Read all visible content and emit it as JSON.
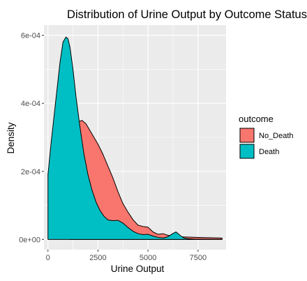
{
  "chart_data": {
    "type": "area",
    "title": "Distribution of Urine Output by Outcome Status",
    "xlabel": "Urine Output",
    "ylabel": "Density",
    "xlim": [
      -200,
      8900
    ],
    "ylim": [
      -3e-05,
      0.00063
    ],
    "x_ticks": [
      0,
      2500,
      5000,
      7500
    ],
    "x_tick_labels": [
      "0",
      "2500",
      "5000",
      "7500"
    ],
    "y_ticks": [
      0,
      0.0002,
      0.0004,
      0.0006
    ],
    "y_tick_labels": [
      "0e+00",
      "2e-04",
      "4e-04",
      "6e-04"
    ],
    "grid": true,
    "legend": {
      "title": "outcome",
      "position": "right",
      "entries": [
        {
          "label": "No_Death",
          "color": "#F8766D"
        },
        {
          "label": "Death",
          "color": "#00BFC4"
        }
      ]
    },
    "series": [
      {
        "name": "No_Death",
        "color": "#F8766D",
        "x": [
          1100,
          1300,
          1500,
          1700,
          1900,
          2100,
          2300,
          2500,
          2750,
          3000,
          3250,
          3500,
          3750,
          4000,
          4250,
          4500,
          4750,
          5000,
          5250,
          5500,
          5750,
          6000,
          6500,
          7000,
          7500,
          8000,
          8700
        ],
        "y": [
          0.00025,
          0.00033,
          0.000345,
          0.00035,
          0.00034,
          0.00032,
          0.0003,
          0.00028,
          0.00025,
          0.000215,
          0.00018,
          0.00014,
          0.000105,
          8e-05,
          5.8e-05,
          4.2e-05,
          3.8e-05,
          3.6e-05,
          2.2e-05,
          1.5e-05,
          1.7e-05,
          1.2e-05,
          8e-06,
          7e-06,
          6e-06,
          5e-06,
          4e-06
        ]
      },
      {
        "name": "Death",
        "color": "#00BFC4",
        "x": [
          0,
          150,
          300,
          450,
          600,
          750,
          900,
          1000,
          1100,
          1250,
          1400,
          1600,
          1800,
          2000,
          2200,
          2400,
          2600,
          2800,
          3000,
          3250,
          3500,
          3750,
          4000,
          4250,
          4500,
          4750,
          5000,
          5250,
          5500,
          5750,
          6000,
          6200,
          6400,
          6600,
          6800,
          7000,
          7300,
          7600,
          8000,
          8400,
          8700
        ],
        "y": [
          0.00019,
          0.00028,
          0.00036,
          0.00044,
          0.00052,
          0.00058,
          0.000595,
          0.00059,
          0.000565,
          0.0005,
          0.00042,
          0.00033,
          0.00025,
          0.00019,
          0.000145,
          0.00011,
          8.5e-05,
          6.8e-05,
          5.7e-05,
          5.5e-05,
          5.6e-05,
          4.8e-05,
          3.5e-05,
          2.4e-05,
          1.7e-05,
          1.4e-05,
          1.5e-05,
          1e-05,
          6e-06,
          4e-06,
          8e-06,
          1.6e-05,
          2.2e-05,
          1.2e-05,
          4e-06,
          2e-06,
          1e-06,
          8e-07,
          5e-07,
          3e-07,
          2e-07
        ]
      }
    ]
  }
}
